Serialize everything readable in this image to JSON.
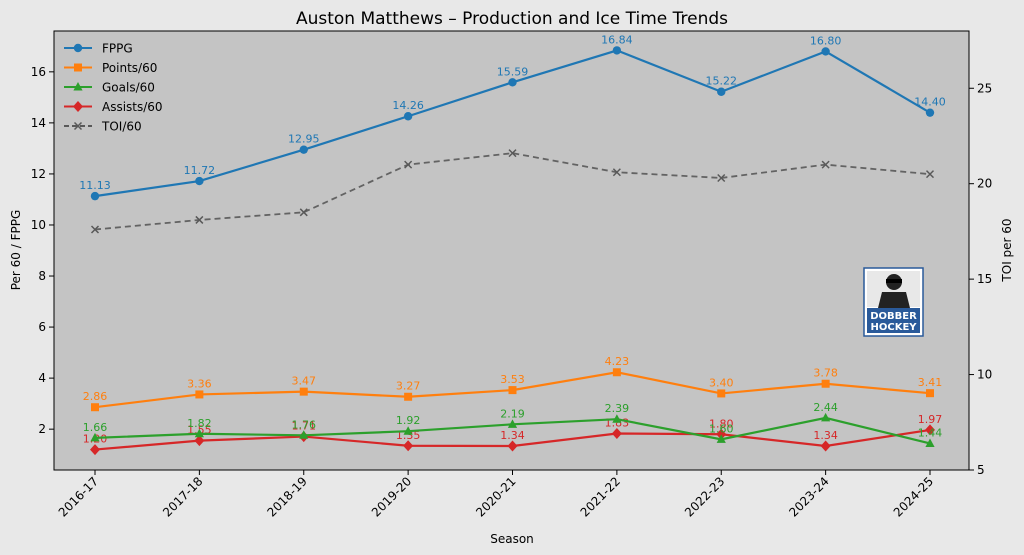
{
  "chart_data": {
    "type": "line",
    "title": "Auston Matthews – Production and Ice Time Trends",
    "xlabel": "Season",
    "ylabel": "Per 60 / FPPG",
    "y2label": "TOI per 60",
    "categories": [
      "2016-17",
      "2017-18",
      "2018-19",
      "2019-20",
      "2020-21",
      "2021-22",
      "2022-23",
      "2023-24",
      "2024-25"
    ],
    "ylim": [
      0.4,
      17.6
    ],
    "yticks": [
      2,
      4,
      6,
      8,
      10,
      12,
      14,
      16
    ],
    "y2lim": [
      5,
      28
    ],
    "y2ticks": [
      5,
      10,
      15,
      20,
      25
    ],
    "legend_position": "top-left",
    "grid": false,
    "series": [
      {
        "name": "FPPG",
        "axis": "left",
        "color": "#1f77b4",
        "marker": "circle",
        "dashed": false,
        "labeled": true,
        "values": [
          11.13,
          11.72,
          12.95,
          14.26,
          15.59,
          16.84,
          15.22,
          16.8,
          14.4
        ]
      },
      {
        "name": "Points/60",
        "axis": "left",
        "color": "#ff7f0e",
        "marker": "square",
        "dashed": false,
        "labeled": true,
        "values": [
          2.86,
          3.36,
          3.47,
          3.27,
          3.53,
          4.23,
          3.4,
          3.78,
          3.41
        ]
      },
      {
        "name": "Goals/60",
        "axis": "left",
        "color": "#2ca02c",
        "marker": "triangle",
        "dashed": false,
        "labeled": true,
        "values": [
          1.66,
          1.82,
          1.76,
          1.92,
          2.19,
          2.39,
          1.6,
          2.44,
          1.44
        ]
      },
      {
        "name": "Assists/60",
        "axis": "left",
        "color": "#d62728",
        "marker": "diamond",
        "dashed": false,
        "labeled": true,
        "values": [
          1.2,
          1.55,
          1.71,
          1.35,
          1.34,
          1.83,
          1.8,
          1.34,
          1.97
        ]
      },
      {
        "name": "TOI/60",
        "axis": "right",
        "color": "#595959",
        "marker": "x",
        "dashed": true,
        "labeled": false,
        "values": [
          17.6,
          18.1,
          18.5,
          21.0,
          21.6,
          20.6,
          20.3,
          21.0,
          20.5
        ]
      }
    ]
  },
  "logo": {
    "line1": "DOBBER",
    "line2": "HOCKEY"
  }
}
